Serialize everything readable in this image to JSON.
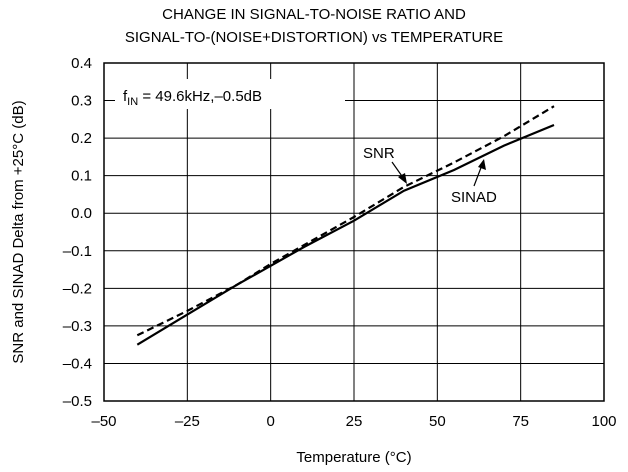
{
  "chart_data": {
    "type": "line",
    "title": [
      "CHANGE IN SIGNAL-TO-NOISE RATIO AND",
      "SIGNAL-TO-(NOISE+DISTORTION) vs TEMPERATURE"
    ],
    "xlabel": "Temperature (°C)",
    "ylabel": "SNR and SINAD Delta from +25°C (dB)",
    "xlim": [
      -50,
      100
    ],
    "ylim": [
      -0.5,
      0.4
    ],
    "xticks": [
      -50,
      -25,
      0,
      25,
      50,
      75,
      100
    ],
    "xtick_labels": [
      "–50",
      "–25",
      "0",
      "25",
      "50",
      "75",
      "100"
    ],
    "yticks": [
      -0.5,
      -0.4,
      -0.3,
      -0.2,
      -0.1,
      0.0,
      0.1,
      0.2,
      0.3,
      0.4
    ],
    "ytick_labels": [
      "–0.5",
      "–0.4",
      "–0.3",
      "–0.2",
      "–0.1",
      "0.0",
      "0.1",
      "0.2",
      "0.3",
      "0.4"
    ],
    "grid": true,
    "annotation": {
      "f": "f",
      "sub": "IN",
      "rest": " = 49.6kHz,–0.5dB"
    },
    "series": [
      {
        "name": "SNR",
        "style": "dashed",
        "color": "#000000",
        "x": [
          -40,
          -25,
          -10,
          0,
          10,
          25,
          40,
          55,
          70,
          85
        ],
        "y": [
          -0.325,
          -0.26,
          -0.19,
          -0.135,
          -0.085,
          -0.01,
          0.07,
          0.135,
          0.205,
          0.285
        ]
      },
      {
        "name": "SINAD",
        "style": "solid",
        "color": "#000000",
        "x": [
          -40,
          -25,
          -10,
          0,
          10,
          25,
          40,
          55,
          70,
          85
        ],
        "y": [
          -0.35,
          -0.27,
          -0.19,
          -0.14,
          -0.09,
          -0.02,
          0.06,
          0.115,
          0.18,
          0.235
        ]
      }
    ]
  }
}
